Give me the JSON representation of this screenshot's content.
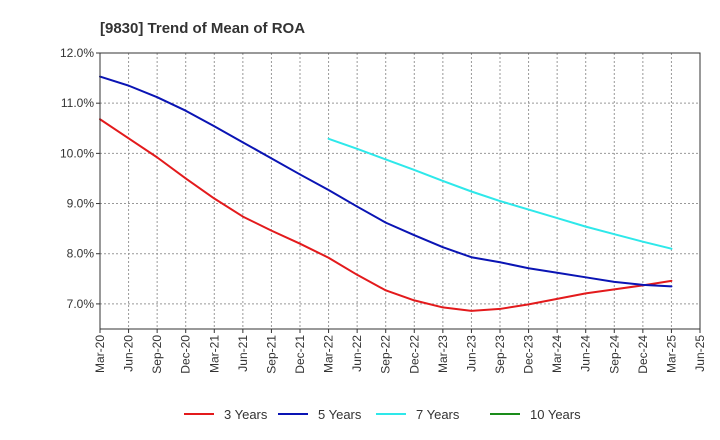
{
  "chart_data": {
    "type": "line",
    "title": "[9830]  Trend of Mean of ROA",
    "xlabel": "",
    "ylabel": "",
    "ylim": [
      6.5,
      12.0
    ],
    "y_ticks": [
      7.0,
      8.0,
      9.0,
      10.0,
      11.0,
      12.0
    ],
    "y_tick_labels": [
      "7.0%",
      "8.0%",
      "9.0%",
      "10.0%",
      "11.0%",
      "12.0%"
    ],
    "categories": [
      "Mar-20",
      "Jun-20",
      "Sep-20",
      "Dec-20",
      "Mar-21",
      "Jun-21",
      "Sep-21",
      "Dec-21",
      "Mar-22",
      "Jun-22",
      "Sep-22",
      "Dec-22",
      "Mar-23",
      "Jun-23",
      "Sep-23",
      "Dec-23",
      "Mar-24",
      "Jun-24",
      "Sep-24",
      "Dec-24",
      "Mar-25",
      "Jun-25"
    ],
    "grid": true,
    "legend_position": "bottom",
    "series": [
      {
        "name": "3 Years",
        "color": "#e31a1c",
        "values": [
          10.68,
          10.3,
          9.92,
          9.5,
          9.1,
          8.74,
          8.46,
          8.2,
          7.92,
          7.58,
          7.27,
          7.07,
          6.93,
          6.86,
          6.9,
          6.99,
          7.1,
          7.21,
          7.29,
          7.37,
          7.46,
          null
        ]
      },
      {
        "name": "5 Years",
        "color": "#0a14b4",
        "values": [
          11.53,
          11.35,
          11.12,
          10.85,
          10.54,
          10.22,
          9.9,
          9.58,
          9.27,
          8.94,
          8.62,
          8.37,
          8.13,
          7.93,
          7.83,
          7.71,
          7.62,
          7.53,
          7.44,
          7.38,
          7.35,
          null
        ]
      },
      {
        "name": "7 Years",
        "color": "#2ee8ea",
        "values": [
          null,
          null,
          null,
          null,
          null,
          null,
          null,
          null,
          10.29,
          10.09,
          9.88,
          9.67,
          9.45,
          9.24,
          9.05,
          8.88,
          8.71,
          8.54,
          8.39,
          8.24,
          8.1,
          null
        ]
      },
      {
        "name": "10 Years",
        "color": "#1a8c1a",
        "values": [
          null,
          null,
          null,
          null,
          null,
          null,
          null,
          null,
          null,
          null,
          null,
          null,
          null,
          null,
          null,
          null,
          null,
          null,
          null,
          null,
          null,
          null
        ]
      }
    ]
  }
}
